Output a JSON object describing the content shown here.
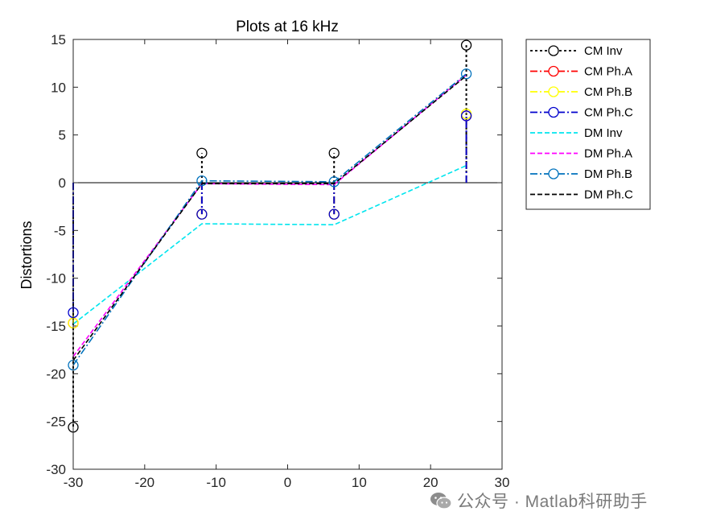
{
  "chart_data": {
    "type": "line",
    "title": "Plots at 16 kHz",
    "xlabel": "",
    "ylabel": "Distortions",
    "xlim": [
      -30,
      30
    ],
    "ylim": [
      -30,
      15
    ],
    "xticks": [
      -30,
      -20,
      -10,
      0,
      10,
      20,
      30
    ],
    "yticks": [
      -30,
      -25,
      -20,
      -15,
      -10,
      -5,
      0,
      5,
      10,
      15
    ],
    "x": [
      -30,
      -12,
      6.5,
      25
    ],
    "zero_line": true,
    "grid": false,
    "legend_position": "outside-top-right",
    "series": [
      {
        "name": "CM Inv",
        "values": [
          -25.6,
          3.1,
          3.1,
          14.4
        ],
        "color": "#000000",
        "dash": "3,3",
        "marker": "circle",
        "stem": true
      },
      {
        "name": "CM Ph.A",
        "values": [
          -14.7,
          -3.3,
          -3.3,
          7.0
        ],
        "color": "#ff0000",
        "dash": "9,3,2,3",
        "marker": "circle",
        "stem": true
      },
      {
        "name": "CM Ph.B",
        "values": [
          -14.7,
          -3.3,
          -3.3,
          7.2
        ],
        "color": "#ffff00",
        "dash": "9,3,2,3",
        "marker": "circle",
        "stem": true
      },
      {
        "name": "CM Ph.C",
        "values": [
          -13.6,
          -3.3,
          -3.3,
          7.0
        ],
        "color": "#0000cd",
        "dash": "9,3,2,3",
        "marker": "circle",
        "stem": true
      },
      {
        "name": "DM Inv",
        "values": [
          -14.8,
          -4.3,
          -4.4,
          1.8
        ],
        "color": "#00e5ee",
        "dash": "6,3",
        "marker": "none",
        "stem": false
      },
      {
        "name": "DM Ph.A",
        "values": [
          -18.2,
          -0.1,
          -0.2,
          11.3
        ],
        "color": "#ff00ff",
        "dash": "6,3",
        "marker": "none",
        "stem": false
      },
      {
        "name": "DM Ph.B",
        "values": [
          -19.1,
          0.2,
          0.1,
          11.4
        ],
        "color": "#0072bd",
        "dash": "9,3,2,3",
        "marker": "circle",
        "stem": false
      },
      {
        "name": "DM Ph.C",
        "values": [
          -18.6,
          -0.1,
          -0.1,
          11.2
        ],
        "color": "#000000",
        "dash": "6,3",
        "marker": "none",
        "stem": false
      }
    ]
  },
  "watermark": {
    "text": "公众号 · Matlab科研助手",
    "icon": "wechat-icon"
  }
}
